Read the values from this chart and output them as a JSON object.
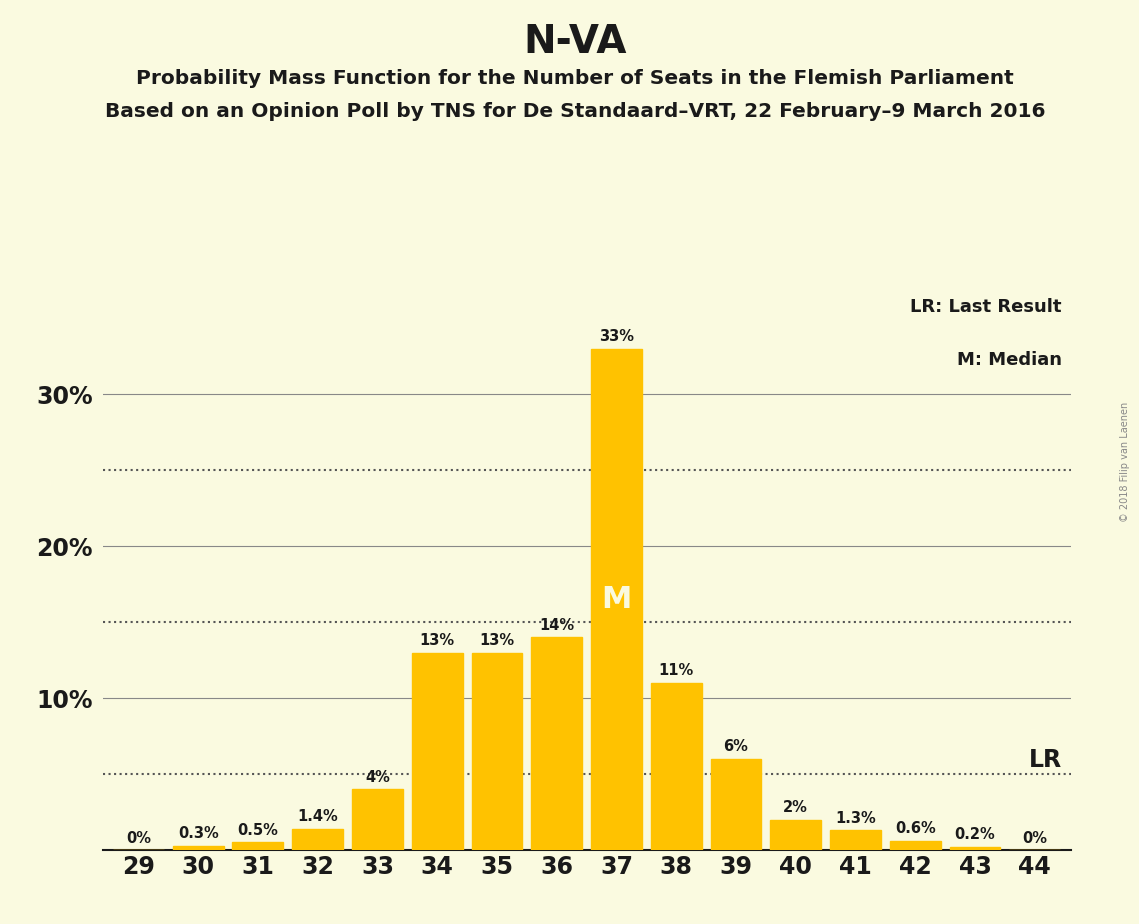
{
  "title": "N-VA",
  "subtitle1": "Probability Mass Function for the Number of Seats in the Flemish Parliament",
  "subtitle2_full": "Based on an Opinion Poll by TNS for De Standaard–VRT, 22 February–9 March 2016",
  "categories": [
    29,
    30,
    31,
    32,
    33,
    34,
    35,
    36,
    37,
    38,
    39,
    40,
    41,
    42,
    43,
    44
  ],
  "values": [
    0.0,
    0.3,
    0.5,
    1.4,
    4.0,
    13.0,
    13.0,
    14.0,
    33.0,
    11.0,
    6.0,
    2.0,
    1.3,
    0.6,
    0.2,
    0.0
  ],
  "labels": [
    "0%",
    "0.3%",
    "0.5%",
    "1.4%",
    "4%",
    "13%",
    "13%",
    "14%",
    "33%",
    "11%",
    "6%",
    "2%",
    "1.3%",
    "0.6%",
    "0.2%",
    "0%"
  ],
  "bar_color": "#FFC200",
  "background_color": "#FAFAE0",
  "text_color": "#1a1a1a",
  "solid_lines": [
    10,
    20,
    30
  ],
  "dotted_lines": [
    5,
    15,
    25
  ],
  "LR_value": 5.0,
  "median_seat": 37,
  "watermark": "© 2018 Filip van Laenen",
  "legend_LR": "LR: Last Result",
  "legend_M": "M: Median",
  "ylim_max": 36.5
}
